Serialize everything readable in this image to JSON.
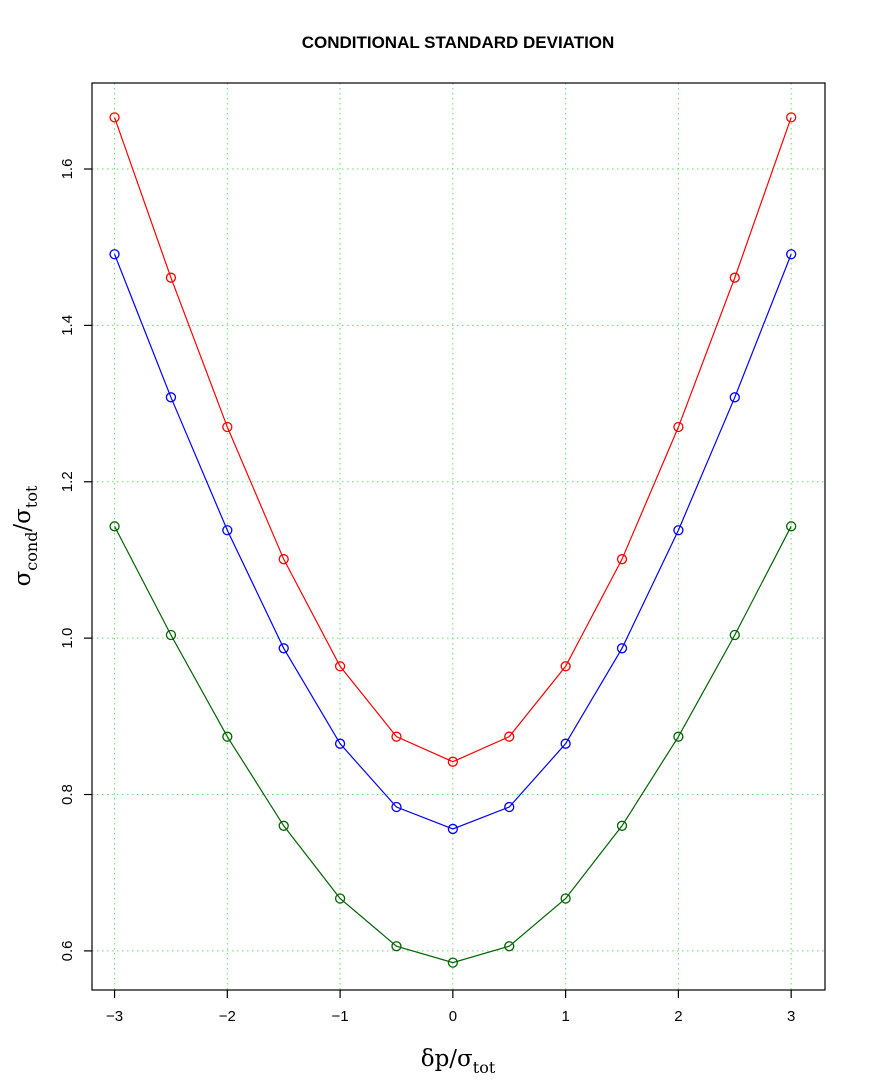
{
  "chart_data": {
    "type": "line",
    "title": "CONDITIONAL STANDARD DEVIATION",
    "xlabel": {
      "main": "δp/σ",
      "sub": "tot"
    },
    "ylabel": {
      "main_before": "σ",
      "sub_before": "cond",
      "slash": "/σ",
      "sub_after": "tot"
    },
    "xlim": [
      -3.2,
      3.3
    ],
    "ylim": [
      0.55,
      1.71
    ],
    "x_ticks": [
      -3,
      -2,
      -1,
      0,
      1,
      2,
      3
    ],
    "x_tick_labels": [
      "−3",
      "−2",
      "−1",
      "0",
      "1",
      "2",
      "3"
    ],
    "y_ticks": [
      0.6,
      0.8,
      1.0,
      1.2,
      1.4,
      1.6
    ],
    "y_tick_labels": [
      "0.6",
      "0.8",
      "1.0",
      "1.2",
      "1.4",
      "1.6"
    ],
    "grid": true,
    "x": [
      -3,
      -2.5,
      -2,
      -1.5,
      -1,
      -0.5,
      0,
      0.5,
      1,
      1.5,
      2,
      2.5,
      3
    ],
    "series": [
      {
        "color": "#ff0000",
        "values": [
          1.666,
          1.461,
          1.27,
          1.101,
          0.964,
          0.874,
          0.842,
          0.874,
          0.964,
          1.101,
          1.27,
          1.461,
          1.666
        ]
      },
      {
        "color": "#0000ff",
        "values": [
          1.491,
          1.308,
          1.138,
          0.987,
          0.865,
          0.784,
          0.756,
          0.784,
          0.865,
          0.987,
          1.138,
          1.308,
          1.491
        ]
      },
      {
        "color": "#006400",
        "values": [
          1.143,
          1.004,
          0.874,
          0.76,
          0.667,
          0.606,
          0.585,
          0.606,
          0.667,
          0.76,
          0.874,
          1.004,
          1.143
        ]
      }
    ]
  }
}
